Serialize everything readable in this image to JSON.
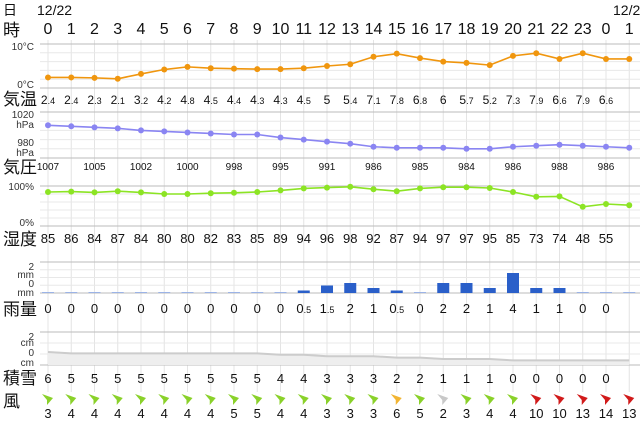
{
  "labels": {
    "day": "日",
    "hour": "時",
    "temp": "気温",
    "pressure": "気圧",
    "humidity": "湿度",
    "rain": "雨量",
    "snow": "積雪",
    "wind": "風"
  },
  "dates": [
    "12/22",
    "12/2"
  ],
  "chart_data": [
    {
      "type": "line",
      "name": "temperature",
      "x": [
        "0",
        "1",
        "2",
        "3",
        "4",
        "5",
        "6",
        "7",
        "8",
        "9",
        "10",
        "11",
        "12",
        "13",
        "14",
        "15",
        "16",
        "17",
        "18",
        "19",
        "20",
        "21",
        "22",
        "23",
        "0",
        "1"
      ],
      "values": [
        2.4,
        2.4,
        2.3,
        2.1,
        3.2,
        4.2,
        4.8,
        4.5,
        4.4,
        4.3,
        4.3,
        4.5,
        5,
        5.4,
        7.1,
        7.8,
        6.8,
        6,
        5.7,
        5.2,
        7.3,
        7.9,
        6.6,
        7.9,
        6.6,
        6.6
      ],
      "value_labels": [
        "2.4",
        "2.4",
        "2.3",
        "2.1",
        "3.2",
        "4.2",
        "4.8",
        "4.5",
        "4.4",
        "4.3",
        "4.3",
        "4.5",
        "5",
        "5.4",
        "7.1",
        "7.8",
        "6.8",
        "6",
        "5.7",
        "5.2",
        "7.3",
        "7.9",
        "6.6",
        "7.9",
        "6.6",
        ""
      ],
      "ylim": [
        0,
        10
      ],
      "tick_labels": [
        "10°C",
        "0°C"
      ],
      "color": "#f0960e"
    },
    {
      "type": "line",
      "name": "pressure",
      "values": [
        1007,
        1006,
        1005,
        1004,
        1002,
        1001,
        1000,
        999,
        998,
        998,
        995,
        993,
        991,
        989,
        986,
        985,
        985,
        985,
        984,
        984,
        986,
        987,
        988,
        987,
        986,
        985
      ],
      "value_labels": [
        "1007",
        "",
        "1005",
        "",
        "1002",
        "",
        "1000",
        "",
        "998",
        "",
        "995",
        "",
        "991",
        "",
        "986",
        "",
        "985",
        "",
        "984",
        "",
        "986",
        "",
        "988",
        "",
        "986",
        ""
      ],
      "ylim": [
        975,
        1020
      ],
      "tick_labels": [
        "1020",
        "hPa",
        "980",
        "hPa"
      ],
      "color": "#8a85f2"
    },
    {
      "type": "line",
      "name": "humidity",
      "values": [
        85,
        86,
        84,
        87,
        84,
        80,
        80,
        82,
        83,
        85,
        89,
        94,
        96,
        98,
        92,
        87,
        94,
        97,
        97,
        95,
        85,
        73,
        74,
        48,
        55,
        52
      ],
      "value_labels": [
        "85",
        "86",
        "84",
        "87",
        "84",
        "80",
        "80",
        "82",
        "83",
        "85",
        "89",
        "94",
        "96",
        "98",
        "92",
        "87",
        "94",
        "97",
        "97",
        "95",
        "85",
        "73",
        "74",
        "48",
        "55",
        ""
      ],
      "ylim": [
        0,
        100
      ],
      "tick_labels": [
        "100%",
        "0%"
      ],
      "color": "#8ce424"
    },
    {
      "type": "bar",
      "name": "rain",
      "values": [
        0,
        0,
        0,
        0,
        0,
        0,
        0,
        0,
        0,
        0,
        0,
        0.5,
        1.5,
        2,
        1,
        0.5,
        0,
        2,
        2,
        1,
        4,
        1,
        1,
        0,
        0,
        0
      ],
      "value_labels": [
        "0",
        "0",
        "0",
        "0",
        "0",
        "0",
        "0",
        "0",
        "0",
        "0",
        "0",
        "0.5",
        "1.5",
        "2",
        "1",
        "0.5",
        "0",
        "2",
        "2",
        "1",
        "4",
        "1",
        "1",
        "0",
        "0",
        ""
      ],
      "tick_labels": [
        "2",
        "mm",
        "0",
        "mm"
      ],
      "color": "#2a5fc9"
    },
    {
      "type": "area",
      "name": "snow",
      "values": [
        6,
        5,
        5,
        5,
        5,
        5,
        5,
        5,
        5,
        5,
        4,
        4,
        3,
        3,
        3,
        2,
        2,
        1,
        1,
        1,
        0,
        0,
        0,
        0,
        0,
        0
      ],
      "value_labels": [
        "6",
        "5",
        "5",
        "5",
        "5",
        "5",
        "5",
        "5",
        "5",
        "5",
        "4",
        "4",
        "3",
        "3",
        "3",
        "2",
        "2",
        "1",
        "1",
        "1",
        "0",
        "0",
        "0",
        "0",
        "0",
        ""
      ],
      "tick_labels": [
        "2",
        "cm",
        "0",
        "cm"
      ],
      "color": "#cccccc"
    },
    {
      "type": "table",
      "name": "wind",
      "values": [
        3,
        4,
        4,
        4,
        4,
        4,
        4,
        4,
        5,
        5,
        4,
        4,
        3,
        3,
        3,
        6,
        5,
        2,
        3,
        4,
        4,
        10,
        10,
        13,
        14,
        13
      ],
      "value_labels": [
        "3",
        "4",
        "4",
        "4",
        "4",
        "4",
        "4",
        "4",
        "5",
        "5",
        "4",
        "4",
        "3",
        "3",
        "3",
        "6",
        "5",
        "2",
        "3",
        "4",
        "4",
        "10",
        "10",
        "13",
        "14",
        "13"
      ],
      "arrow_colors": [
        "#8ad12a",
        "#8ad12a",
        "#8ad12a",
        "#8ad12a",
        "#8ad12a",
        "#8ad12a",
        "#8ad12a",
        "#8ad12a",
        "#8ad12a",
        "#8ad12a",
        "#8ad12a",
        "#8ad12a",
        "#8ad12a",
        "#8ad12a",
        "#8ad12a",
        "#f2b533",
        "#8ad12a",
        "#c8c8c8",
        "#8ad12a",
        "#8ad12a",
        "#8ad12a",
        "#d11a1a",
        "#d11a1a",
        "#d11a1a",
        "#d11a1a",
        "#d11a1a"
      ]
    }
  ]
}
